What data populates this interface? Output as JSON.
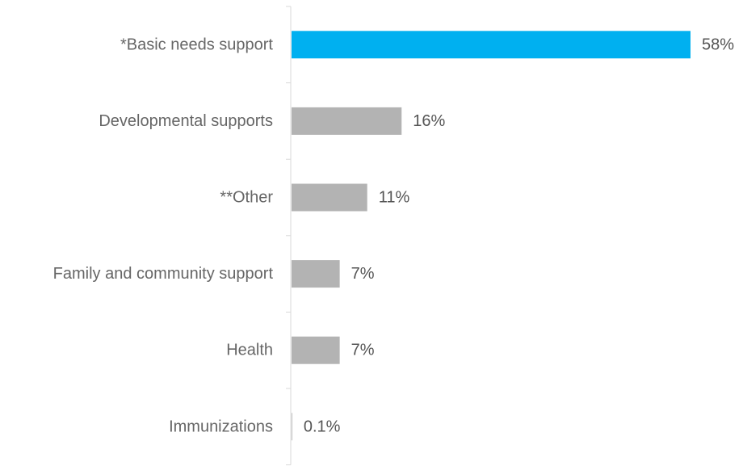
{
  "chart_data": {
    "type": "bar",
    "orientation": "horizontal",
    "categories": [
      "*Basic needs support",
      "Developmental supports",
      "**Other",
      "Family and community support",
      "Health",
      "Immunizations"
    ],
    "values": [
      58,
      16,
      11,
      7,
      7,
      0.1
    ],
    "value_labels": [
      "58%",
      "16%",
      "11%",
      "7%",
      "7%",
      "0.1%"
    ],
    "highlight_index": 0,
    "xlim": [
      0,
      58
    ],
    "grid": false,
    "legend": "none",
    "colors": {
      "highlight": "#00b0f0",
      "default": "#b3b3b3",
      "axis": "#d9d9d9"
    }
  }
}
